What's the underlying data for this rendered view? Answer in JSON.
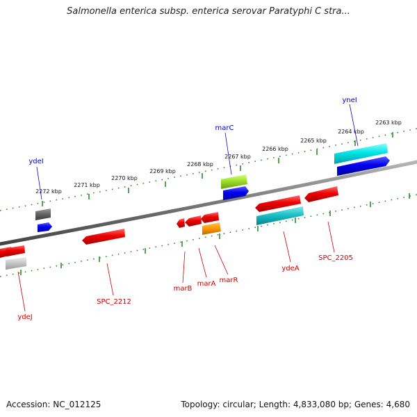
{
  "title": "Salmonella enterica subsp. enterica serovar Paratyphi C stra...",
  "footer": {
    "accession": "Accession: NC_012125",
    "summary": "Topology: circular; Length: 4,833,080 bp; Genes: 4,680"
  },
  "colors": {
    "backbone": "#7a7a7a",
    "tick": "#2e8b2e",
    "forward_label": "#0000cc",
    "reverse_label": "#cc0000"
  },
  "scale_labels": [
    "2272 kbp",
    "2271 kbp",
    "2270 kbp",
    "2269 kbp",
    "2268 kbp",
    "2267 kbp",
    "2266 kbp",
    "2265 kbp",
    "2264 kbp",
    "2263 kbp"
  ],
  "gene_labels": {
    "ydeI": "ydeI",
    "marC": "marC",
    "yneI": "yneI",
    "ydeJ": "ydeJ",
    "SPC_2212": "SPC_2212",
    "marB": "marB",
    "marA": "marA",
    "marR": "marR",
    "ydeA": "ydeA",
    "SPC_2205": "SPC_2205"
  }
}
